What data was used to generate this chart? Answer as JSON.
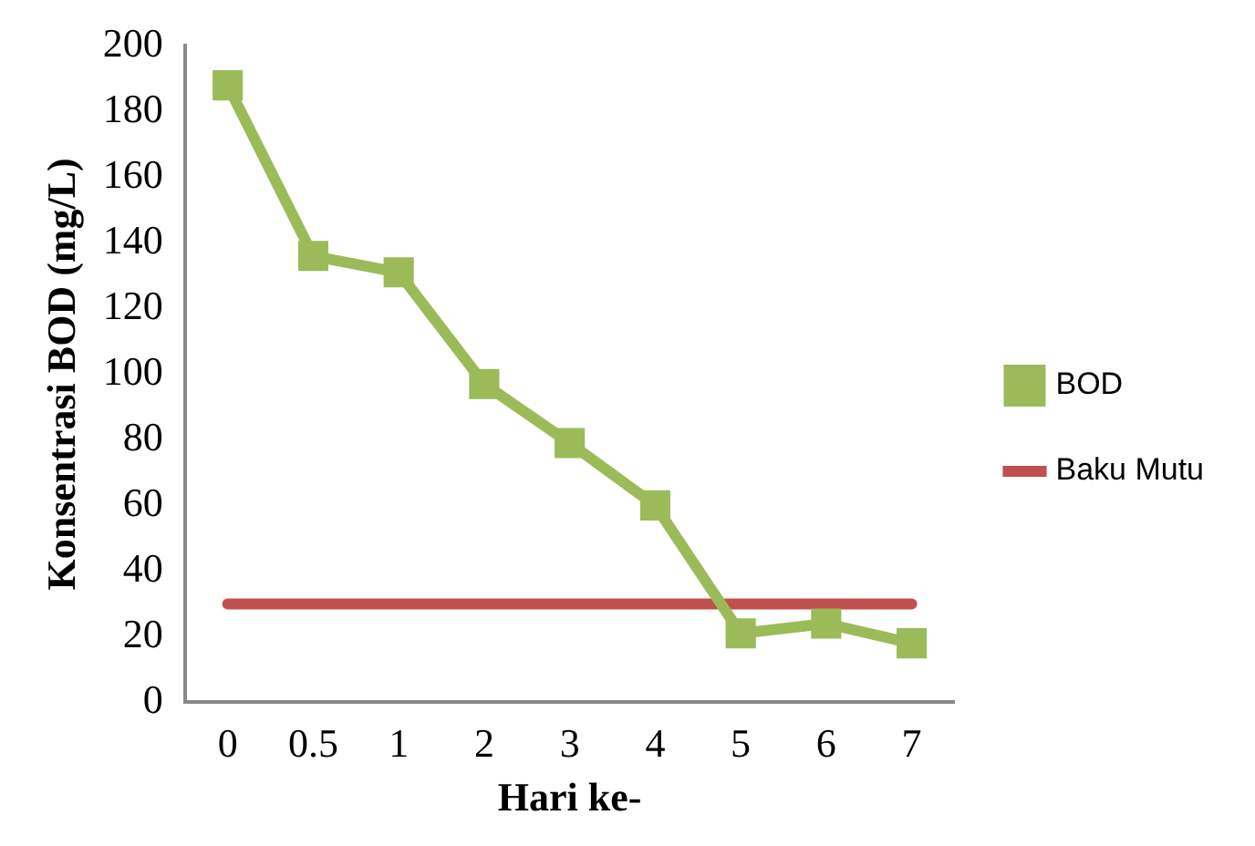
{
  "chart_data": {
    "type": "line",
    "xlabel": "Hari ke-",
    "ylabel": "Konsentrasi BOD (mg/L)",
    "categories": [
      "0",
      "0.5",
      "1",
      "2",
      "3",
      "4",
      "5",
      "6",
      "7"
    ],
    "series": [
      {
        "name": "BOD",
        "color": "#9bbb59",
        "marker": "square",
        "values": [
          188,
          136,
          131,
          97,
          79,
          60,
          21,
          24,
          18
        ]
      },
      {
        "name": "Baku Mutu",
        "color": "#c0504d",
        "marker": "none",
        "values": [
          30,
          30,
          30,
          30,
          30,
          30,
          30,
          30,
          30
        ]
      }
    ],
    "ylim": [
      0,
      200
    ],
    "yticks": [
      0,
      20,
      40,
      60,
      80,
      100,
      120,
      140,
      160,
      180,
      200
    ],
    "grid": false,
    "legend": "right",
    "line_style": "solid"
  }
}
